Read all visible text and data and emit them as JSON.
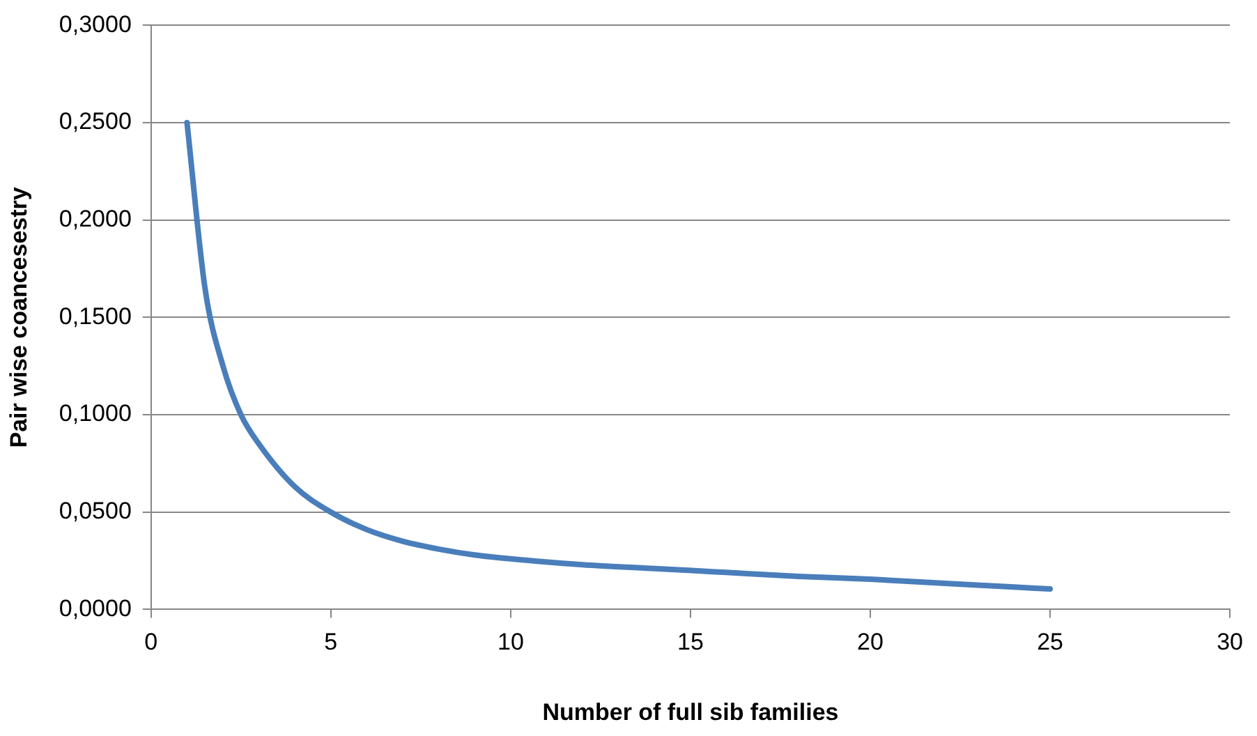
{
  "chart_data": {
    "type": "line",
    "xlabel": "Number of full sib families",
    "ylabel": "Pair wise coancesestry",
    "x": [
      1,
      1.5,
      2,
      2.5,
      3,
      4,
      5,
      6,
      7,
      8,
      9,
      10,
      12,
      14,
      16,
      18,
      20,
      22,
      24,
      25
    ],
    "series": [
      {
        "color": "#4a7ebb",
        "values": [
          0.25,
          0.165,
          0.125,
          0.1,
          0.085,
          0.063,
          0.05,
          0.041,
          0.035,
          0.031,
          0.028,
          0.026,
          0.023,
          0.021,
          0.019,
          0.017,
          0.0155,
          0.0135,
          0.0115,
          0.0105
        ]
      }
    ],
    "xlim": [
      0,
      30
    ],
    "xticks": [
      0,
      5,
      10,
      15,
      20,
      25,
      30
    ],
    "ylim": [
      0,
      0.3
    ],
    "yticks": [
      {
        "value": 0,
        "label": "0,0000"
      },
      {
        "value": 0.05,
        "label": "0,0500"
      },
      {
        "value": 0.1,
        "label": "0,1000"
      },
      {
        "value": 0.15,
        "label": "0,1500"
      },
      {
        "value": 0.2,
        "label": "0,2000"
      },
      {
        "value": 0.25,
        "label": "0,2500"
      },
      {
        "value": 0.3,
        "label": "0,3000"
      }
    ],
    "grid": "y",
    "legend": false,
    "marker": "none",
    "line_style": "solid"
  }
}
